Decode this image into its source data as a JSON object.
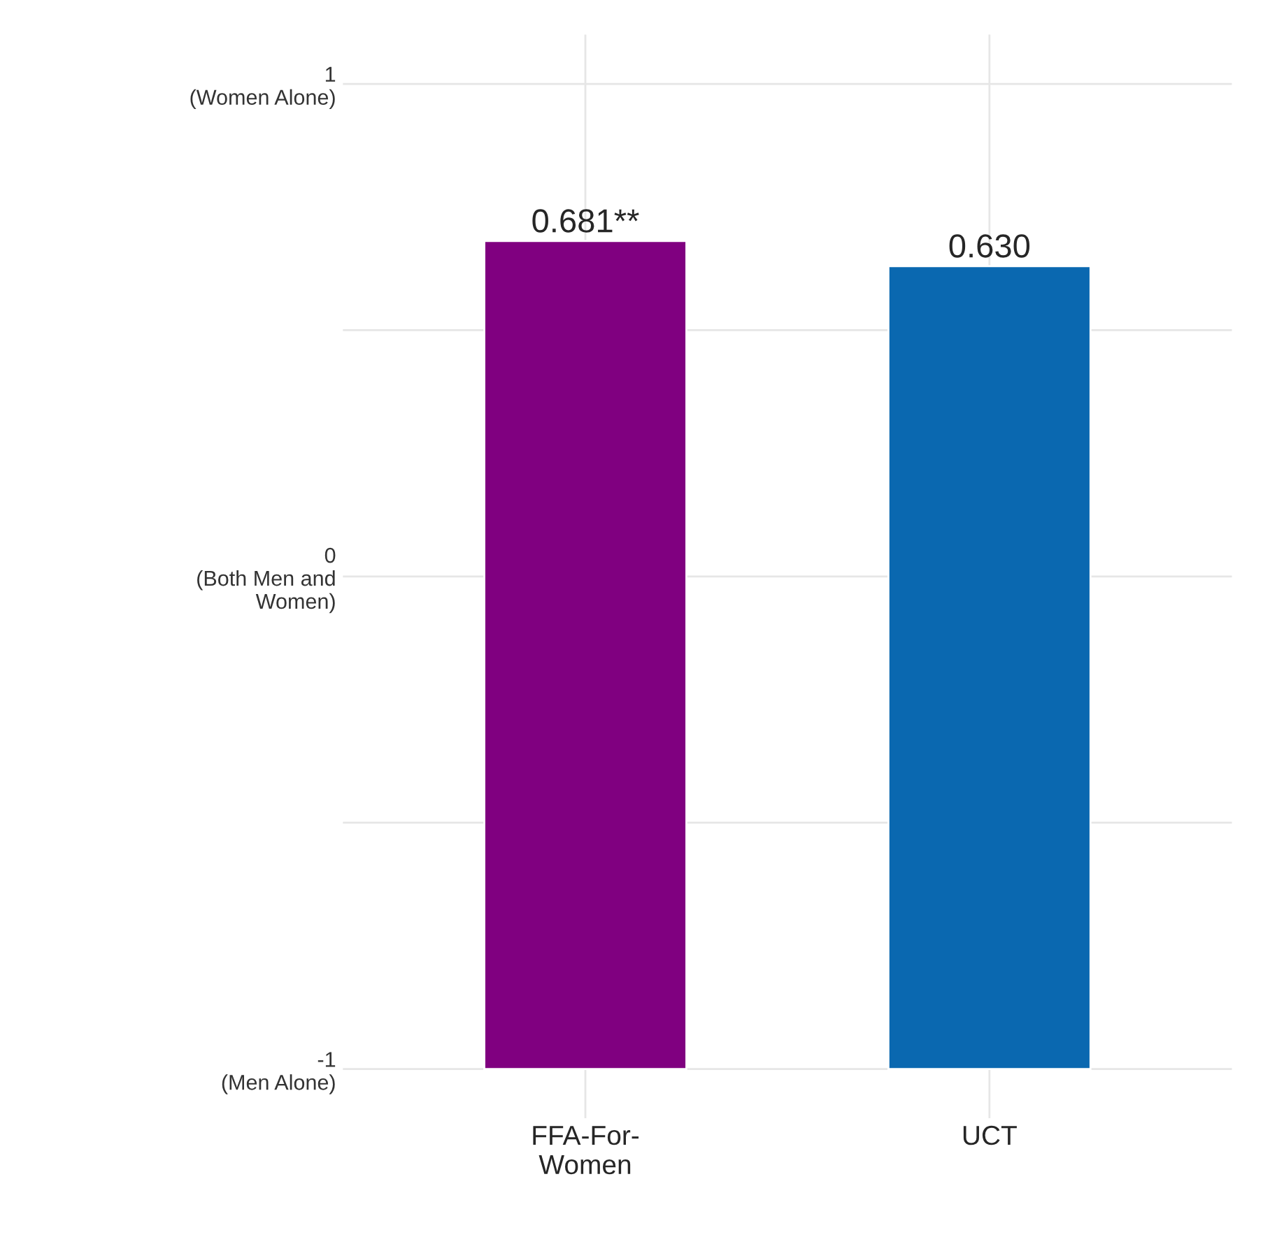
{
  "chart_data": {
    "type": "bar",
    "categories": [
      "FFA-For-\nWomen",
      "UCT"
    ],
    "values": [
      1.681,
      1.63
    ],
    "base": [
      -1,
      -1
    ],
    "colors": [
      "#800080",
      "#0a68b0"
    ],
    "value_labels": [
      "0.681**",
      "0.630"
    ],
    "ylim": [
      -1.1,
      1.1
    ],
    "yticks": [
      {
        "value": -1,
        "label": "-1\n(Men Alone)"
      },
      {
        "value": -0.5,
        "label": null
      },
      {
        "value": 0,
        "label": "0\n(Both Men and\nWomen)"
      },
      {
        "value": 0.5,
        "label": null
      },
      {
        "value": 1,
        "label": "1\n(Women Alone)"
      }
    ],
    "grid": true
  }
}
